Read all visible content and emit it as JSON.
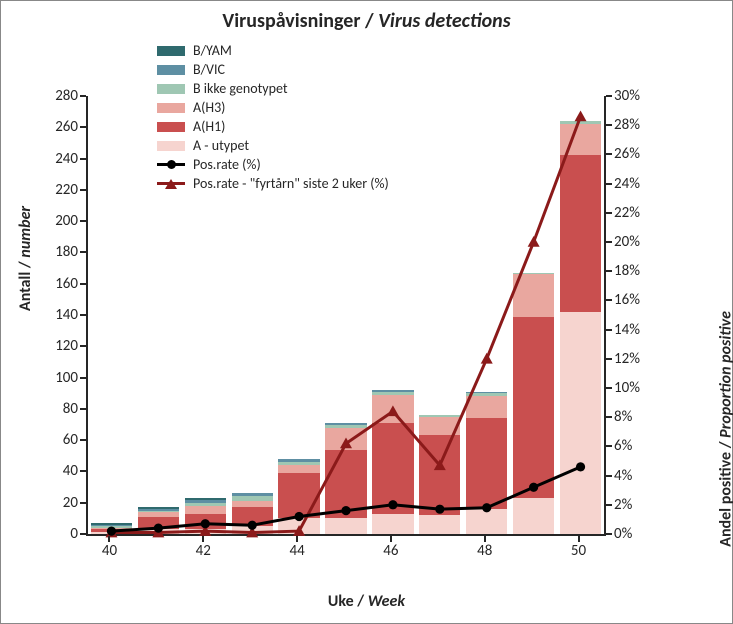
{
  "title_part1": "Viruspåvisninger / ",
  "title_part2": "Virus detections",
  "xlabel_part1": "Uke / ",
  "xlabel_part2": "Week",
  "ylabel_left_part1": "Antall / ",
  "ylabel_left_part2": "number",
  "ylabel_right_part1": "Andel positive / ",
  "ylabel_right_part2": "Proportion positive",
  "chart": {
    "type": "stacked-bar-with-dual-axis-lines",
    "categories": [
      40,
      41,
      42,
      43,
      44,
      45,
      46,
      47,
      48,
      49,
      50
    ],
    "xtick_labels": [
      "40",
      "42",
      "44",
      "46",
      "48",
      "50"
    ],
    "xtick_positions": [
      40,
      42,
      44,
      46,
      48,
      50
    ],
    "left_axis": {
      "min": 0,
      "max": 280,
      "step": 20
    },
    "right_axis": {
      "min": 0,
      "max": 30,
      "step": 2,
      "suffix": "%"
    },
    "series_stack_order": [
      "A_utypet",
      "A_H1",
      "A_H3",
      "B_ikke",
      "B_VIC",
      "B_YAM"
    ],
    "series": {
      "B_YAM": {
        "label": "B/YAM",
        "color": "#2f6a6e",
        "values": [
          1,
          1,
          1,
          0,
          0,
          0,
          0,
          0,
          0,
          0,
          0
        ]
      },
      "B_VIC": {
        "label": "B/VIC",
        "color": "#5e8fa3",
        "values": [
          1,
          1,
          2,
          2,
          2,
          1,
          1,
          0,
          1,
          0,
          0
        ]
      },
      "B_ikke": {
        "label": "B ikke genotypet",
        "color": "#9fc7b3",
        "values": [
          1,
          1,
          2,
          3,
          2,
          2,
          2,
          1,
          2,
          1,
          2
        ]
      },
      "A_H3": {
        "label": "A(H3)",
        "color": "#e9a79f",
        "values": [
          1,
          3,
          5,
          4,
          5,
          14,
          18,
          12,
          14,
          27,
          20
        ]
      },
      "A_H1": {
        "label": "A(H1)",
        "color": "#c94f4f",
        "values": [
          2,
          8,
          10,
          12,
          29,
          44,
          58,
          51,
          58,
          116,
          100
        ]
      },
      "A_utypet": {
        "label": "A - utypet",
        "color": "#f6d4cf",
        "values": [
          1,
          3,
          3,
          5,
          10,
          10,
          13,
          12,
          16,
          23,
          142
        ]
      }
    },
    "line1": {
      "label": "Pos.rate (%)",
      "color": "#000000",
      "marker": "circle",
      "values": [
        0.2,
        0.4,
        0.7,
        0.6,
        1.2,
        1.6,
        2.0,
        1.7,
        1.8,
        3.2,
        4.6
      ]
    },
    "line2": {
      "label": "Pos.rate - \"fyrtårn\" siste 2 uker (%)",
      "color": "#8b1a1a",
      "marker": "triangle",
      "values": [
        0.1,
        0.1,
        0.2,
        0.1,
        0.2,
        6.2,
        8.4,
        4.7,
        12.0,
        20.0,
        28.6
      ]
    },
    "style": {
      "bar_width_ratio": 0.88,
      "background_color": "#ffffff",
      "axis_color": "#262626",
      "tick_fontsize": 15,
      "label_fontsize": 16,
      "title_fontsize": 20,
      "legend_fontsize": 14,
      "line_width": 3,
      "marker_size": 6
    }
  }
}
